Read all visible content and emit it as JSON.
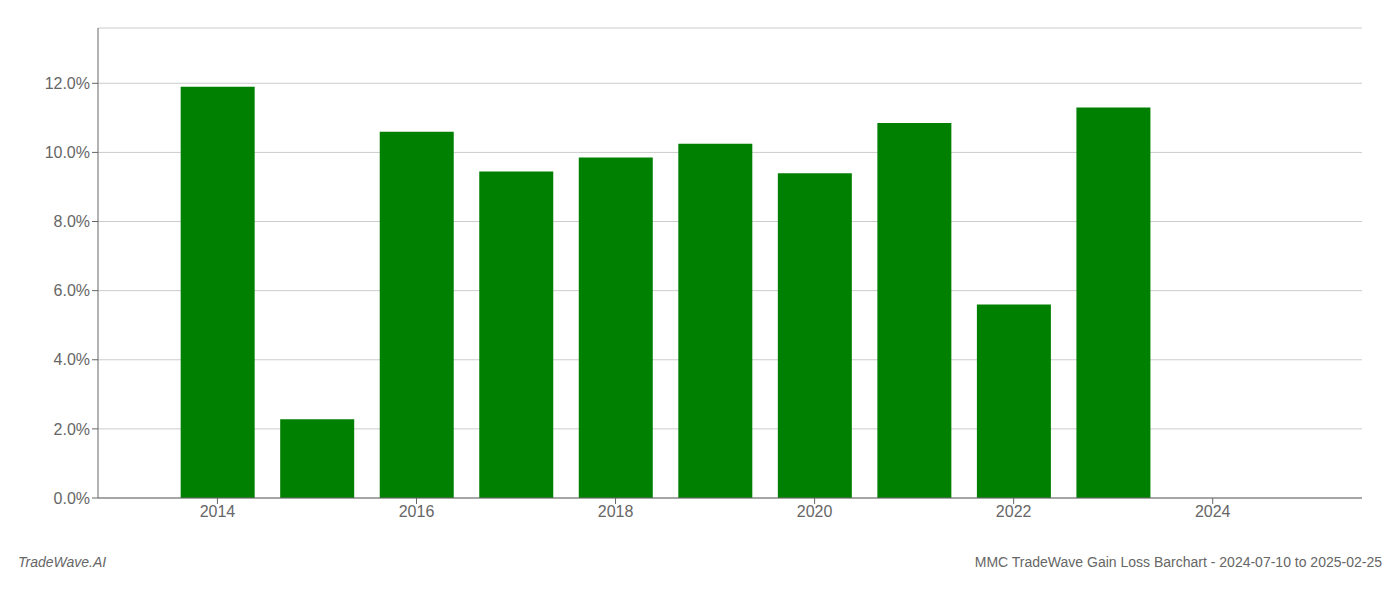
{
  "chart_data": {
    "type": "bar",
    "x": [
      2014,
      2015,
      2016,
      2017,
      2018,
      2019,
      2020,
      2021,
      2022,
      2023
    ],
    "values": [
      0.119,
      0.0228,
      0.106,
      0.0945,
      0.0985,
      0.1025,
      0.094,
      0.1085,
      0.056,
      0.113
    ],
    "color": "#008000",
    "xlim": [
      2012.8,
      2025.5
    ],
    "xticks": [
      2014,
      2016,
      2018,
      2020,
      2022,
      2024
    ],
    "ylim": [
      0,
      0.136
    ],
    "yticks": [
      {
        "value": 0.0,
        "label": "0.0%"
      },
      {
        "value": 0.02,
        "label": "2.0%"
      },
      {
        "value": 0.04,
        "label": "4.0%"
      },
      {
        "value": 0.06,
        "label": "6.0%"
      },
      {
        "value": 0.08,
        "label": "8.0%"
      },
      {
        "value": 0.1,
        "label": "10.0%"
      },
      {
        "value": 0.12,
        "label": "12.0%"
      }
    ],
    "grid": true,
    "annotations": [
      "TradeWave.AI",
      "MMC TradeWave Gain Loss Barchart - 2024-07-10 to 2025-02-25"
    ]
  }
}
